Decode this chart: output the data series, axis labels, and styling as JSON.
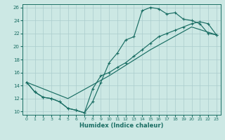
{
  "xlabel": "Humidex (Indice chaleur)",
  "bg_color": "#cce8e4",
  "grid_color": "#aacccc",
  "line_color": "#1a6e64",
  "xlim": [
    -0.5,
    23.5
  ],
  "ylim": [
    9.5,
    26.5
  ],
  "xticks": [
    0,
    1,
    2,
    3,
    4,
    5,
    6,
    7,
    8,
    9,
    10,
    11,
    12,
    13,
    14,
    15,
    16,
    17,
    18,
    19,
    20,
    21,
    22,
    23
  ],
  "yticks": [
    10,
    12,
    14,
    16,
    18,
    20,
    22,
    24,
    26
  ],
  "series1_x": [
    0,
    1,
    2,
    3,
    4,
    5,
    6,
    7,
    8,
    9,
    10,
    11,
    12,
    13,
    14,
    15,
    16,
    17,
    18,
    19,
    20,
    21,
    22,
    23
  ],
  "series1_y": [
    14.5,
    13.0,
    12.2,
    12.0,
    11.5,
    10.5,
    10.2,
    9.8,
    11.5,
    14.5,
    17.5,
    19.0,
    21.0,
    21.5,
    25.5,
    26.0,
    25.8,
    25.0,
    25.2,
    24.2,
    24.0,
    23.5,
    22.0,
    21.8
  ],
  "series2_x": [
    0,
    1,
    2,
    3,
    4,
    5,
    6,
    7,
    8,
    9,
    10,
    11,
    12,
    13,
    14,
    15,
    16,
    17,
    18,
    19,
    20,
    21,
    22,
    23
  ],
  "series2_y": [
    14.5,
    13.0,
    12.2,
    12.0,
    11.5,
    10.5,
    10.2,
    9.8,
    13.5,
    15.5,
    16.0,
    16.8,
    17.5,
    18.5,
    19.5,
    20.5,
    21.5,
    22.0,
    22.5,
    23.0,
    23.5,
    23.8,
    23.5,
    21.8
  ],
  "series3_x": [
    0,
    5,
    10,
    15,
    20,
    23
  ],
  "series3_y": [
    14.5,
    12.0,
    15.5,
    19.5,
    23.0,
    21.8
  ]
}
